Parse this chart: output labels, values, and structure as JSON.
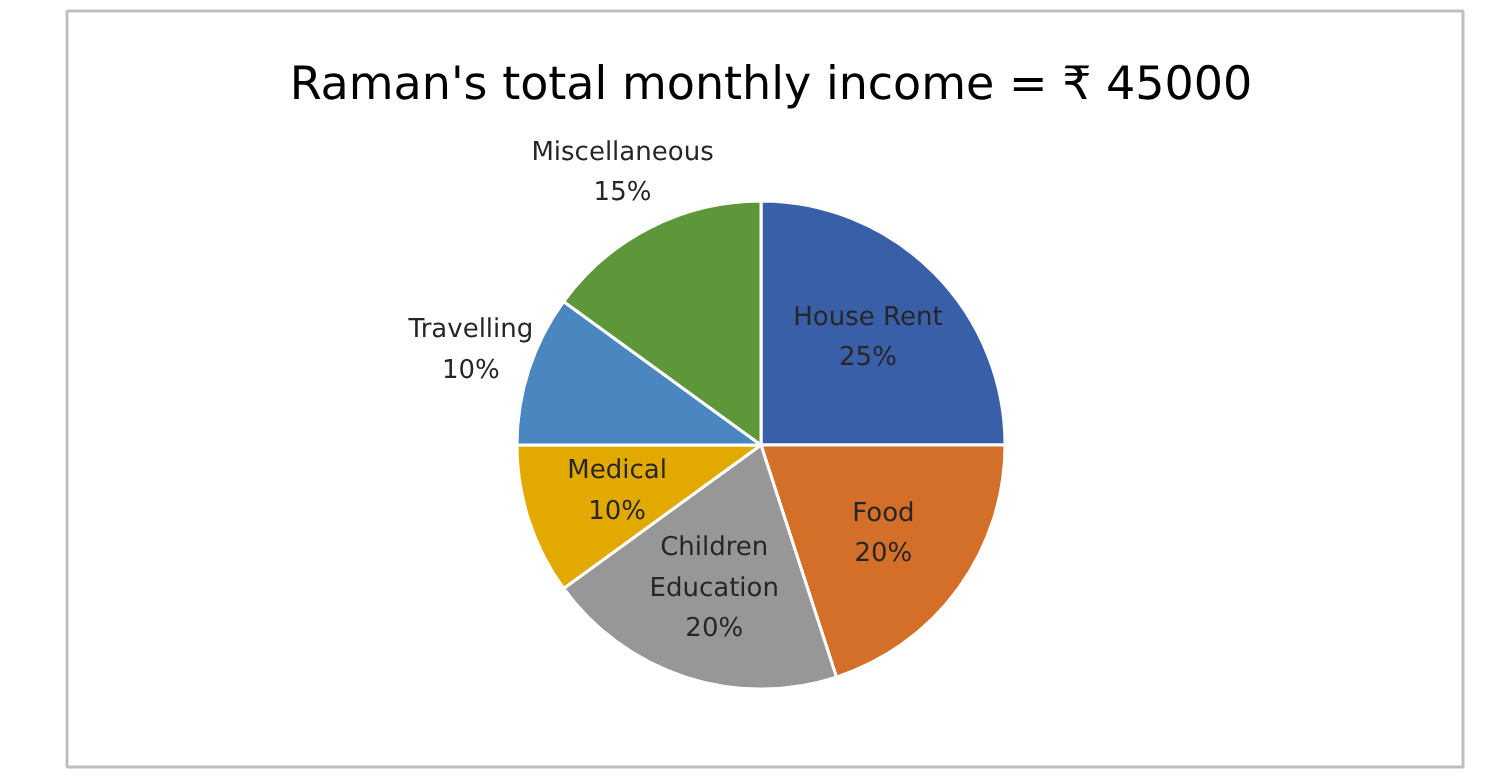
{
  "chart_data": {
    "type": "pie",
    "title": "Raman's total monthly income = ₹ 45000",
    "categories": [
      "House Rent",
      "Food",
      "Children Education",
      "Medical",
      "Travelling",
      "Miscellaneous"
    ],
    "values": [
      25,
      20,
      20,
      10,
      10,
      15
    ],
    "colors": [
      "#3a5fa9",
      "#d46f2a",
      "#979797",
      "#e2aa00",
      "#4a87c0",
      "#5e963a"
    ],
    "value_labels": [
      "25%",
      "20%",
      "20%",
      "10%",
      "10%",
      "15%"
    ]
  }
}
